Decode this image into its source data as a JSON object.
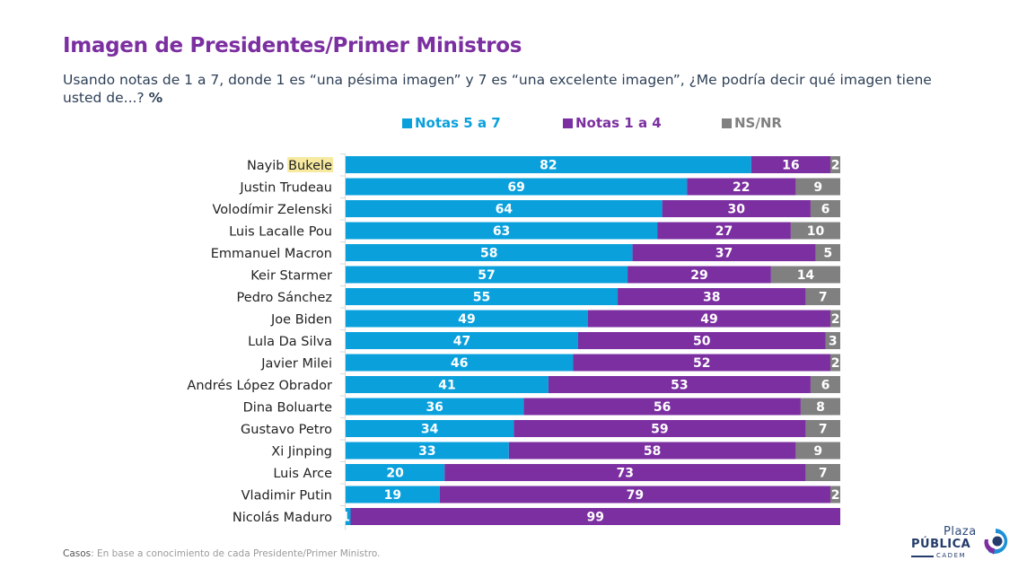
{
  "page": {
    "title": "Imagen de Presidentes/Primer Ministros",
    "subtitle": "Usando notas de 1 a 7, donde 1 es “una pésima imagen” y 7 es “una excelente imagen”, ¿Me podría decir qué imagen tiene usted de...?",
    "subtitle_unit": "%",
    "footer_label": "Casos",
    "footer_text": ": En base a conocimiento de cada Presidente/Primer Ministro.",
    "logo": {
      "line1": "Plaza",
      "line2": "PÚBLICA",
      "line3": "CADEM"
    }
  },
  "colors": {
    "title": "#7b2fa0",
    "notas_5_7": "#0aa0dc",
    "notas_1_4": "#7b2fa0",
    "ns_nr": "#808080",
    "highlight": "#f7eaa0"
  },
  "chart_data": {
    "type": "bar",
    "orientation": "horizontal",
    "stacked": true,
    "title": "Imagen de Presidentes/Primer Ministros",
    "xlabel": "",
    "ylabel": "",
    "unit": "%",
    "xlim": [
      0,
      100
    ],
    "grid": false,
    "legend_position": "top",
    "highlighted_label_word": "Bukele",
    "categories": [
      "Nayib Bukele",
      "Justin Trudeau",
      "Volodímir Zelenski",
      "Luis Lacalle Pou",
      "Emmanuel Macron",
      "Keir Starmer",
      "Pedro Sánchez",
      "Joe Biden",
      "Lula Da Silva",
      "Javier Milei",
      "Andrés López Obrador",
      "Dina Boluarte",
      "Gustavo Petro",
      "Xi Jinping",
      "Luis Arce",
      "Vladimir Putin",
      "Nicolás Maduro"
    ],
    "series": [
      {
        "name": "Notas 5 a 7",
        "color": "#0aa0dc",
        "values": [
          82,
          69,
          64,
          63,
          58,
          57,
          55,
          49,
          47,
          46,
          41,
          36,
          34,
          33,
          20,
          19,
          1
        ]
      },
      {
        "name": "Notas 1 a 4",
        "color": "#7b2fa0",
        "values": [
          16,
          22,
          30,
          27,
          37,
          29,
          38,
          49,
          50,
          52,
          53,
          56,
          59,
          58,
          73,
          79,
          99
        ]
      },
      {
        "name": "NS/NR",
        "color": "#808080",
        "values": [
          2,
          9,
          6,
          10,
          5,
          14,
          7,
          2,
          3,
          2,
          6,
          8,
          7,
          9,
          7,
          2,
          0
        ]
      }
    ]
  }
}
